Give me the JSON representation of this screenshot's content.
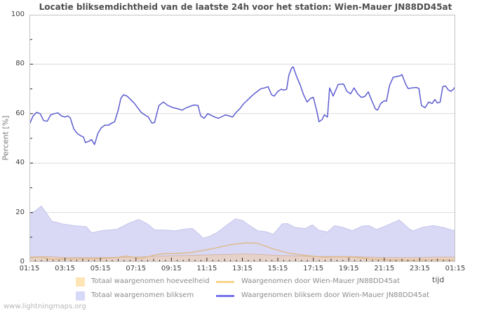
{
  "title": "Locatie bliksemdichtheid van de laatste 24h voor het station: Wien-Mauer JN88DD45at",
  "watermark": "www.lightningmaps.org",
  "legend": {
    "swatches": [
      "#ffe4b5",
      "#d8d8f8",
      "#f8d38b",
      "#7373ee"
    ]
  },
  "chart_data": {
    "type": "area",
    "title": "Locatie bliksemdichtheid van de laatste 24h voor het station: Wien-Mauer JN88DD45at",
    "xlabel": "tijd",
    "ylabel": "Percent [%]",
    "ylim": [
      0,
      100
    ],
    "y_major_ticks": [
      0,
      20,
      40,
      60,
      80,
      100
    ],
    "y_minor_ticks": [
      10,
      30,
      50,
      70,
      90
    ],
    "x_ticks": [
      "01:15",
      "03:15",
      "05:15",
      "07:15",
      "09:15",
      "11:15",
      "13:15",
      "15:15",
      "17:15",
      "19:15",
      "21:15",
      "23:15",
      "01:15"
    ],
    "x_range_hours": [
      0,
      24
    ],
    "grid": "horizontal",
    "legend_position": "bottom",
    "draw_order": [
      1,
      0,
      2,
      3
    ],
    "series": [
      {
        "name": "Totaal waargenomen hoeveelheid",
        "type": "area",
        "color": "#e8d2c6",
        "edge": "#d4b6a6",
        "opacity": 0.95,
        "points": [
          [
            0,
            2
          ],
          [
            1,
            2.2
          ],
          [
            2,
            1.8
          ],
          [
            4,
            1.8
          ],
          [
            6,
            2
          ],
          [
            8,
            2.5
          ],
          [
            10,
            2.8
          ],
          [
            12,
            3.2
          ],
          [
            13,
            3
          ],
          [
            14,
            2.6
          ],
          [
            16,
            2.2
          ],
          [
            18,
            2.2
          ],
          [
            20,
            1.8
          ],
          [
            22,
            1.8
          ],
          [
            23,
            2
          ],
          [
            24,
            2
          ]
        ]
      },
      {
        "name": "Totaal waargenomen bliksem",
        "type": "area",
        "color": "#d9d9f6",
        "edge": "#c4c4ea",
        "opacity": 1,
        "points": [
          [
            0,
            19.3
          ],
          [
            0.3,
            20.5
          ],
          [
            0.67,
            22.6
          ],
          [
            0.95,
            19.8
          ],
          [
            1.25,
            16.5
          ],
          [
            1.9,
            15.3
          ],
          [
            2.6,
            14.6
          ],
          [
            3.2,
            14.3
          ],
          [
            3.5,
            11.8
          ],
          [
            4.15,
            12.7
          ],
          [
            4.95,
            13.2
          ],
          [
            5.55,
            15.5
          ],
          [
            6.15,
            17.2
          ],
          [
            6.65,
            15.4
          ],
          [
            7.05,
            13
          ],
          [
            7.65,
            12.9
          ],
          [
            8.2,
            12.6
          ],
          [
            8.9,
            13.4
          ],
          [
            9.2,
            13.5
          ],
          [
            9.8,
            9.6
          ],
          [
            10.2,
            10.5
          ],
          [
            10.6,
            12
          ],
          [
            11.05,
            14.5
          ],
          [
            11.6,
            17.4
          ],
          [
            12,
            16.8
          ],
          [
            12.35,
            15
          ],
          [
            12.85,
            12.6
          ],
          [
            13.35,
            12.2
          ],
          [
            13.75,
            11.2
          ],
          [
            14.25,
            15.4
          ],
          [
            14.55,
            15.5
          ],
          [
            14.95,
            14
          ],
          [
            15.55,
            13.5
          ],
          [
            15.95,
            15
          ],
          [
            16.3,
            12.8
          ],
          [
            16.8,
            12.1
          ],
          [
            17.2,
            14.7
          ],
          [
            17.65,
            14
          ],
          [
            18,
            13.1
          ],
          [
            18.2,
            12.6
          ],
          [
            18.75,
            14.5
          ],
          [
            19.15,
            14.7
          ],
          [
            19.55,
            13.1
          ],
          [
            19.9,
            14
          ],
          [
            20.85,
            17
          ],
          [
            21.45,
            13.1
          ],
          [
            21.65,
            12.6
          ],
          [
            22.15,
            14
          ],
          [
            22.75,
            14.7
          ],
          [
            23.3,
            14
          ],
          [
            23.7,
            13.1
          ],
          [
            24,
            12.6
          ]
        ]
      },
      {
        "name": "Waargenomen door Wien-Mauer JN88DD45at",
        "type": "line",
        "color": "#dfba8a",
        "points": [
          [
            0,
            1.7
          ],
          [
            0.65,
            2
          ],
          [
            1.2,
            1.1
          ],
          [
            2.5,
            1.2
          ],
          [
            4,
            1.3
          ],
          [
            4.9,
            1.8
          ],
          [
            5.45,
            2.4
          ],
          [
            6.25,
            1.4
          ],
          [
            7.15,
            2.9
          ],
          [
            7.55,
            3.3
          ],
          [
            8.35,
            3.5
          ],
          [
            9,
            3.7
          ],
          [
            10.2,
            5.2
          ],
          [
            11.5,
            7.2
          ],
          [
            12.2,
            7.7
          ],
          [
            12.8,
            7.6
          ],
          [
            13.25,
            6.5
          ],
          [
            13.75,
            5.2
          ],
          [
            14.65,
            3.5
          ],
          [
            15.55,
            2.6
          ],
          [
            16,
            2.3
          ],
          [
            16.6,
            1.9
          ],
          [
            17.5,
            2.1
          ],
          [
            18.3,
            1.9
          ],
          [
            19.2,
            1.2
          ],
          [
            20,
            0.9
          ],
          [
            21,
            0.7
          ],
          [
            22,
            0.7
          ],
          [
            23,
            0.9
          ],
          [
            23.5,
            0.8
          ],
          [
            24,
            0.8
          ]
        ]
      },
      {
        "name": "Waargenomen bliksem door Wien-Mauer JN88DD45at",
        "type": "line",
        "color": "#5d5dd0",
        "points": [
          [
            0,
            55.7
          ],
          [
            0.2,
            59
          ],
          [
            0.4,
            60.5
          ],
          [
            0.6,
            60
          ],
          [
            0.8,
            57.2
          ],
          [
            1,
            56.9
          ],
          [
            1.2,
            59.5
          ],
          [
            1.4,
            60
          ],
          [
            1.6,
            60.3
          ],
          [
            1.8,
            59.1
          ],
          [
            2,
            58.6
          ],
          [
            2.15,
            59.1
          ],
          [
            2.3,
            58.3
          ],
          [
            2.5,
            53.8
          ],
          [
            2.7,
            51.9
          ],
          [
            2.9,
            51
          ],
          [
            3.05,
            50.5
          ],
          [
            3.15,
            48.3
          ],
          [
            3.35,
            48.8
          ],
          [
            3.5,
            49.5
          ],
          [
            3.67,
            47.5
          ],
          [
            3.85,
            51.9
          ],
          [
            4.05,
            54.3
          ],
          [
            4.25,
            55.3
          ],
          [
            4.45,
            55.3
          ],
          [
            4.65,
            56.2
          ],
          [
            4.8,
            56.7
          ],
          [
            5,
            61.4
          ],
          [
            5.15,
            66.2
          ],
          [
            5.3,
            67.6
          ],
          [
            5.5,
            67.1
          ],
          [
            5.7,
            65.7
          ],
          [
            5.9,
            64.3
          ],
          [
            6.1,
            62.4
          ],
          [
            6.3,
            60.5
          ],
          [
            6.5,
            59.5
          ],
          [
            6.7,
            58.6
          ],
          [
            6.9,
            56.2
          ],
          [
            7.05,
            56.4
          ],
          [
            7.3,
            63.3
          ],
          [
            7.55,
            64.7
          ],
          [
            7.8,
            63.3
          ],
          [
            8.1,
            62.4
          ],
          [
            8.4,
            61.9
          ],
          [
            8.6,
            61.4
          ],
          [
            8.85,
            62.4
          ],
          [
            9.1,
            63.1
          ],
          [
            9.3,
            63.5
          ],
          [
            9.5,
            63.3
          ],
          [
            9.65,
            59.1
          ],
          [
            9.85,
            58.1
          ],
          [
            10.05,
            60
          ],
          [
            10.25,
            59.3
          ],
          [
            10.45,
            58.6
          ],
          [
            10.65,
            58.1
          ],
          [
            10.85,
            58.8
          ],
          [
            11.05,
            59.5
          ],
          [
            11.25,
            59.1
          ],
          [
            11.45,
            58.6
          ],
          [
            11.65,
            60.5
          ],
          [
            11.85,
            61.9
          ],
          [
            12.05,
            63.8
          ],
          [
            12.25,
            65.2
          ],
          [
            12.45,
            66.6
          ],
          [
            12.65,
            67.9
          ],
          [
            12.85,
            69
          ],
          [
            13.05,
            70.1
          ],
          [
            13.25,
            70.4
          ],
          [
            13.45,
            70.9
          ],
          [
            13.65,
            67.6
          ],
          [
            13.8,
            67.1
          ],
          [
            14,
            69
          ],
          [
            14.2,
            69.9
          ],
          [
            14.35,
            69.5
          ],
          [
            14.5,
            69.9
          ],
          [
            14.62,
            75.6
          ],
          [
            14.78,
            78.5
          ],
          [
            14.87,
            78.9
          ],
          [
            15.05,
            75.2
          ],
          [
            15.25,
            71.8
          ],
          [
            15.45,
            67.6
          ],
          [
            15.65,
            64.7
          ],
          [
            15.85,
            66.2
          ],
          [
            16,
            66.6
          ],
          [
            16.2,
            61
          ],
          [
            16.32,
            56.7
          ],
          [
            16.5,
            57.6
          ],
          [
            16.62,
            59.5
          ],
          [
            16.8,
            58.6
          ],
          [
            16.92,
            70.4
          ],
          [
            17.12,
            67.1
          ],
          [
            17.4,
            71.8
          ],
          [
            17.7,
            72
          ],
          [
            17.9,
            69
          ],
          [
            18.1,
            68
          ],
          [
            18.3,
            70.4
          ],
          [
            18.5,
            68
          ],
          [
            18.7,
            66.6
          ],
          [
            18.9,
            66.9
          ],
          [
            19.1,
            68.8
          ],
          [
            19.3,
            65.2
          ],
          [
            19.5,
            61.9
          ],
          [
            19.62,
            61.4
          ],
          [
            19.8,
            64.1
          ],
          [
            20,
            65.2
          ],
          [
            20.12,
            65
          ],
          [
            20.3,
            71.4
          ],
          [
            20.5,
            74.7
          ],
          [
            20.7,
            75
          ],
          [
            20.9,
            75.3
          ],
          [
            21,
            75.8
          ],
          [
            21.2,
            72
          ],
          [
            21.35,
            70.1
          ],
          [
            21.55,
            70.4
          ],
          [
            21.8,
            70.6
          ],
          [
            21.95,
            70.2
          ],
          [
            22.1,
            63.3
          ],
          [
            22.3,
            62.4
          ],
          [
            22.5,
            64.7
          ],
          [
            22.7,
            64.1
          ],
          [
            22.85,
            65.7
          ],
          [
            23,
            64.3
          ],
          [
            23.15,
            64.7
          ],
          [
            23.3,
            70.9
          ],
          [
            23.45,
            71.2
          ],
          [
            23.6,
            69.7
          ],
          [
            23.75,
            69
          ],
          [
            23.9,
            69.9
          ],
          [
            24,
            70.9
          ]
        ]
      }
    ]
  }
}
